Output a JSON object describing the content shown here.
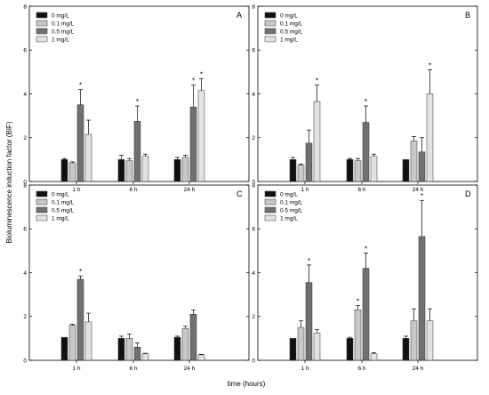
{
  "figure": {
    "ylabel": "Bioluminescence induction factor (BIF)",
    "xlabel": "time (hours)",
    "colors": {
      "0 mg/L": "#111111",
      "0.1 mg/L": "#c8c8c8",
      "0.5 mg/L": "#707070",
      "1 mg/L": "#e2e2e2"
    }
  },
  "chart_data": [
    {
      "type": "bar",
      "panel": "A",
      "categories": [
        "1 h",
        "6 h",
        "24 h"
      ],
      "ylim": [
        0,
        8
      ],
      "yticks": [
        0,
        2,
        4,
        6,
        8
      ],
      "legend": "top-left",
      "series": [
        {
          "name": "0 mg/L",
          "values": [
            1.0,
            1.0,
            1.0
          ],
          "errors": [
            0.05,
            0.2,
            0.1
          ]
        },
        {
          "name": "0.1 mg/L",
          "values": [
            0.85,
            0.95,
            1.1
          ],
          "errors": [
            0.05,
            0.1,
            0.1
          ]
        },
        {
          "name": "0.5 mg/L",
          "values": [
            3.5,
            2.75,
            3.4
          ],
          "errors": [
            0.7,
            0.7,
            1.0
          ]
        },
        {
          "name": "1 mg/L",
          "values": [
            2.15,
            1.15,
            4.15
          ],
          "errors": [
            0.65,
            0.1,
            0.55
          ]
        }
      ],
      "significant": [
        [
          false,
          false,
          true,
          false
        ],
        [
          false,
          false,
          true,
          false
        ],
        [
          false,
          false,
          true,
          true
        ]
      ]
    },
    {
      "type": "bar",
      "panel": "B",
      "categories": [
        "1 h",
        "6 h",
        "24 h"
      ],
      "ylim": [
        0,
        8
      ],
      "yticks": [
        0,
        2,
        4,
        6,
        8
      ],
      "legend": "top-left",
      "series": [
        {
          "name": "0 mg/L",
          "values": [
            1.0,
            1.0,
            1.0
          ],
          "errors": [
            0.1,
            0.05,
            0.0
          ]
        },
        {
          "name": "0.1 mg/L",
          "values": [
            0.75,
            0.95,
            1.85
          ],
          "errors": [
            0.05,
            0.1,
            0.2
          ]
        },
        {
          "name": "0.5 mg/L",
          "values": [
            1.75,
            2.7,
            1.35
          ],
          "errors": [
            0.6,
            0.75,
            0.65
          ]
        },
        {
          "name": "1 mg/L",
          "values": [
            3.65,
            1.15,
            4.0
          ],
          "errors": [
            0.75,
            0.1,
            1.1
          ]
        }
      ],
      "significant": [
        [
          false,
          false,
          false,
          true
        ],
        [
          false,
          false,
          true,
          false
        ],
        [
          false,
          false,
          false,
          true
        ]
      ]
    },
    {
      "type": "bar",
      "panel": "C",
      "categories": [
        "1 h",
        "6 h",
        "24 h"
      ],
      "ylim": [
        0,
        8
      ],
      "yticks": [
        0,
        2,
        4,
        6,
        8
      ],
      "legend": "top-left",
      "series": [
        {
          "name": "0 mg/L",
          "values": [
            1.05,
            1.0,
            1.05
          ],
          "errors": [
            0.0,
            0.1,
            0.05
          ]
        },
        {
          "name": "0.1 mg/L",
          "values": [
            1.6,
            1.0,
            1.45
          ],
          "errors": [
            0.05,
            0.2,
            0.1
          ]
        },
        {
          "name": "0.5 mg/L",
          "values": [
            3.7,
            0.6,
            2.1
          ],
          "errors": [
            0.15,
            0.2,
            0.2
          ]
        },
        {
          "name": "1 mg/L",
          "values": [
            1.75,
            0.3,
            0.25
          ],
          "errors": [
            0.4,
            0.02,
            0.02
          ]
        }
      ],
      "significant": [
        [
          false,
          false,
          true,
          false
        ],
        [
          false,
          false,
          false,
          false
        ],
        [
          false,
          false,
          false,
          false
        ]
      ]
    },
    {
      "type": "bar",
      "panel": "D",
      "categories": [
        "1 h",
        "6 h",
        "24 h"
      ],
      "ylim": [
        0,
        8
      ],
      "yticks": [
        0,
        2,
        4,
        6,
        8
      ],
      "legend": "top-left",
      "series": [
        {
          "name": "0 mg/L",
          "values": [
            1.0,
            1.0,
            1.0
          ],
          "errors": [
            0.0,
            0.05,
            0.1
          ]
        },
        {
          "name": "0.1 mg/L",
          "values": [
            1.5,
            2.3,
            1.8
          ],
          "errors": [
            0.3,
            0.2,
            0.55
          ]
        },
        {
          "name": "0.5 mg/L",
          "values": [
            3.55,
            4.2,
            5.65
          ],
          "errors": [
            0.8,
            0.7,
            1.65
          ]
        },
        {
          "name": "1 mg/L",
          "values": [
            1.25,
            0.3,
            1.8
          ],
          "errors": [
            0.15,
            0.05,
            0.55
          ]
        }
      ],
      "significant": [
        [
          false,
          false,
          true,
          false
        ],
        [
          false,
          true,
          true,
          false
        ],
        [
          false,
          false,
          true,
          false
        ]
      ]
    }
  ]
}
